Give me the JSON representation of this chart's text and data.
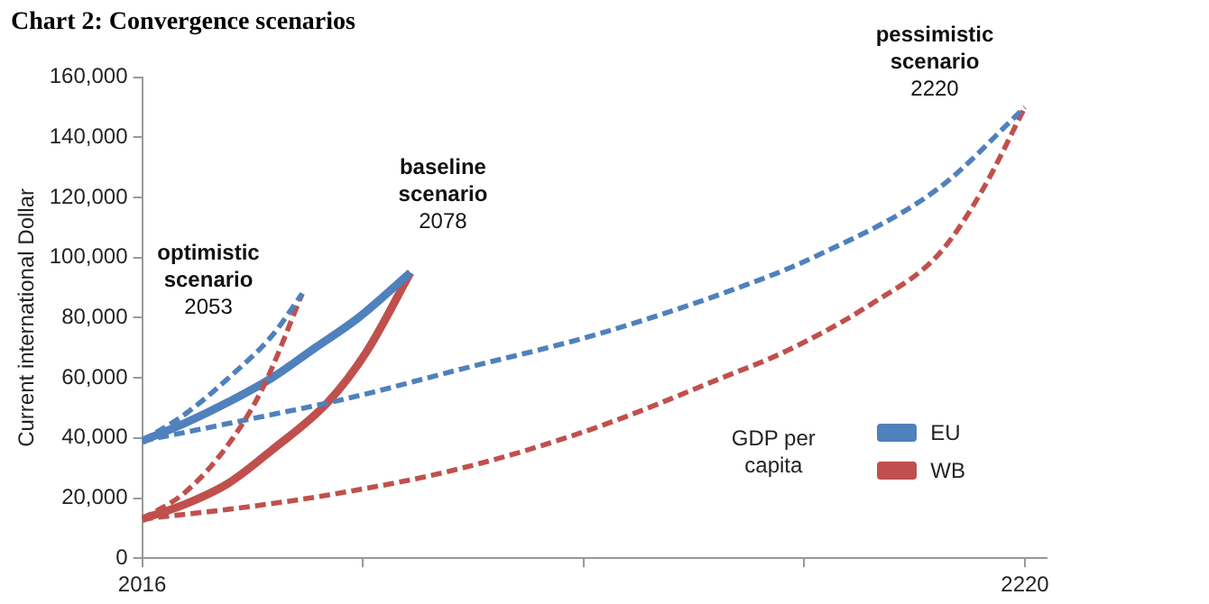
{
  "chart_data": {
    "type": "line",
    "title": "Chart 2: Convergence scenarios",
    "ylabel": "Current international Dollar",
    "legend_title": "GDP per capita",
    "legend": "bottom right",
    "grid": false,
    "marker": "none",
    "xlim": [
      2016,
      2225
    ],
    "xticks": [
      2016,
      {
        "value": 2067,
        "label": null
      },
      {
        "value": 2118,
        "label": null
      },
      {
        "value": 2169,
        "label": null
      },
      2220
    ],
    "ylim": [
      0,
      160000
    ],
    "yticks": [
      {
        "value": 0,
        "label": "0"
      },
      {
        "value": 20000,
        "label": "20,000"
      },
      {
        "value": 40000,
        "label": "40,000"
      },
      {
        "value": 60000,
        "label": "60,000"
      },
      {
        "value": 80000,
        "label": "80,000"
      },
      {
        "value": 100000,
        "label": "100,000"
      },
      {
        "value": 120000,
        "label": "120,000"
      },
      {
        "value": 140000,
        "label": "140,000"
      },
      {
        "value": 160000,
        "label": "160,000"
      }
    ],
    "series": [
      {
        "color": "#4f81bd",
        "line_style": "dashed",
        "x": [
          2016,
          2026,
          2036,
          2046,
          2053
        ],
        "values": [
          39000,
          48000,
          60000,
          74000,
          88000
        ]
      },
      {
        "color": "#c0504d",
        "line_style": "dashed",
        "x": [
          2016,
          2026,
          2036,
          2044,
          2053
        ],
        "values": [
          13000,
          22000,
          38000,
          57000,
          88000
        ]
      },
      {
        "color": "#4f81bd",
        "line_style": "dashed",
        "x": [
          2016,
          2040,
          2063,
          2090,
          2120,
          2150,
          2171,
          2200,
          2220
        ],
        "values": [
          39000,
          46000,
          53000,
          63000,
          74000,
          88000,
          100000,
          123000,
          150000
        ]
      },
      {
        "color": "#c0504d",
        "line_style": "dashed",
        "x": [
          2016,
          2040,
          2063,
          2090,
          2120,
          2150,
          2165,
          2185,
          2200,
          2210,
          2220
        ],
        "values": [
          13000,
          17000,
          22000,
          30000,
          43000,
          60000,
          69000,
          85000,
          101000,
          122000,
          150000
        ]
      },
      {
        "name": "EU",
        "color": "#4f81bd",
        "line_style": "solid",
        "x": [
          2016,
          2026,
          2036,
          2046,
          2056,
          2066,
          2078
        ],
        "values": [
          39000,
          45000,
          52000,
          60000,
          70000,
          80000,
          95000
        ]
      },
      {
        "name": "WB",
        "color": "#c0504d",
        "line_style": "solid",
        "x": [
          2016,
          2026,
          2036,
          2046,
          2059,
          2068,
          2078
        ],
        "values": [
          13000,
          18000,
          25000,
          36000,
          52000,
          69000,
          95000
        ]
      }
    ],
    "annotations": [
      {
        "text": "optimistic scenario 2053",
        "x": 2053,
        "y": 88000
      },
      {
        "text": "baseline scenario 2078",
        "x": 2078,
        "y": 95000
      },
      {
        "text": "pessimistic scenario 2220",
        "x": 2220,
        "y": 150000
      }
    ]
  }
}
